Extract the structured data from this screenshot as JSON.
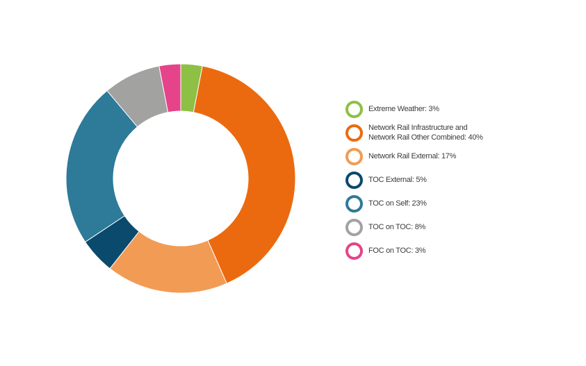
{
  "chart_data": {
    "type": "pie",
    "variant": "donut",
    "series": [
      {
        "name": "Extreme Weather",
        "value": 3,
        "color": "#8dc045"
      },
      {
        "name": "Network Rail Infrastructure and\nNetwork Rail Other Combined",
        "value": 40,
        "color": "#ec6a0f"
      },
      {
        "name": "Network Rail External",
        "value": 17,
        "color": "#f29b55"
      },
      {
        "name": "TOC External",
        "value": 5,
        "color": "#0a4a6c"
      },
      {
        "name": "TOC on Self",
        "value": 23,
        "color": "#2e7a99"
      },
      {
        "name": "TOC on TOC",
        "value": 8,
        "color": "#a2a2a1"
      },
      {
        "name": "FOC on TOC",
        "value": 3,
        "color": "#e5448a"
      }
    ],
    "legend_position": "right"
  }
}
